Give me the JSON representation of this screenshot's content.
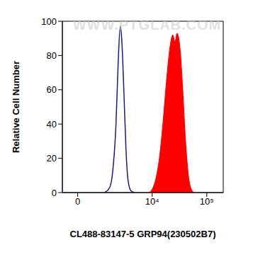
{
  "chart_data": {
    "type": "line",
    "x_label": "CL488-83147-5 GRP94(230502B7)",
    "y_label": "Relative Cell Number",
    "annotations": [
      "WWW.PTGLAB.COM"
    ],
    "xlim": [
      -600,
      200000
    ],
    "xticks": [
      0,
      {
        "value": 10000,
        "label": "10⁴"
      },
      {
        "value": 100000,
        "label": "10⁵"
      }
    ],
    "ylim": [
      0,
      100
    ],
    "yticks": [
      0,
      20,
      40,
      60,
      80,
      100
    ],
    "grid": false,
    "series": [
      {
        "type": "line",
        "color": "#1a1a8c",
        "x": [
          1213,
          1563,
          1842,
          2097,
          2311,
          2540,
          2706,
          2975,
          3271,
          3584,
          4054,
          4715
        ],
        "values": [
          0,
          3,
          15,
          40,
          75,
          97,
          90,
          60,
          25,
          7,
          1,
          0
        ]
      },
      {
        "type": "area",
        "color": "#ff0000",
        "x": [
          8640,
          10030,
          11650,
          13550,
          15720,
          18270,
          21210,
          23930,
          26170,
          28610,
          32250,
          36370,
          40980,
          46200,
          52030,
          58700
        ],
        "values": [
          0,
          2,
          8,
          20,
          40,
          65,
          85,
          92,
          88,
          93,
          85,
          60,
          30,
          10,
          2,
          0
        ]
      }
    ]
  }
}
